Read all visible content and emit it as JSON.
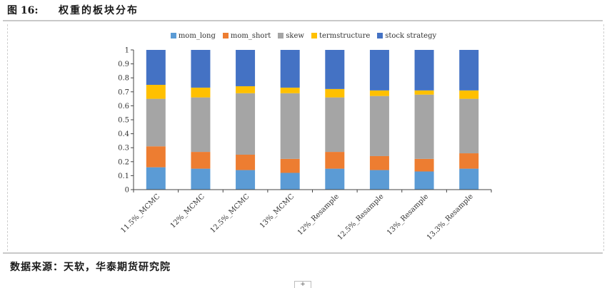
{
  "header": {
    "figure_number": "图 16:",
    "title": "权重的板块分布"
  },
  "source": "数据来源：天软，华泰期货研究院",
  "corner_mark": "+",
  "chart_data": {
    "type": "bar",
    "stacked": true,
    "title": "权重的板块分布",
    "categories": [
      "11.5%_MCMC",
      "12%_MCMC",
      "12.5%_MCMC",
      "13%_MCMC",
      "12%_Resample",
      "12.5%_Resample",
      "13%_Resample",
      "13.3%_Resample"
    ],
    "series": [
      {
        "name": "mom_long",
        "color": "#5b9bd5",
        "values": [
          0.16,
          0.15,
          0.14,
          0.12,
          0.15,
          0.14,
          0.13,
          0.15
        ]
      },
      {
        "name": "mom_short",
        "color": "#ed7d31",
        "values": [
          0.15,
          0.12,
          0.11,
          0.1,
          0.12,
          0.1,
          0.09,
          0.11
        ]
      },
      {
        "name": "skew",
        "color": "#a5a5a5",
        "values": [
          0.34,
          0.39,
          0.44,
          0.47,
          0.39,
          0.43,
          0.46,
          0.39
        ]
      },
      {
        "name": "termstructure",
        "color": "#ffc000",
        "values": [
          0.1,
          0.07,
          0.05,
          0.04,
          0.06,
          0.04,
          0.03,
          0.06
        ]
      },
      {
        "name": "stock strategy",
        "color": "#4472c4",
        "values": [
          0.25,
          0.27,
          0.26,
          0.27,
          0.28,
          0.29,
          0.29,
          0.29
        ]
      }
    ],
    "yticks": [
      "0",
      "0.1",
      "0.2",
      "0.3",
      "0.4",
      "0.5",
      "0.6",
      "0.7",
      "0.8",
      "0.9",
      "1"
    ],
    "ylim": [
      0,
      1
    ],
    "legend_position": "top-center"
  }
}
